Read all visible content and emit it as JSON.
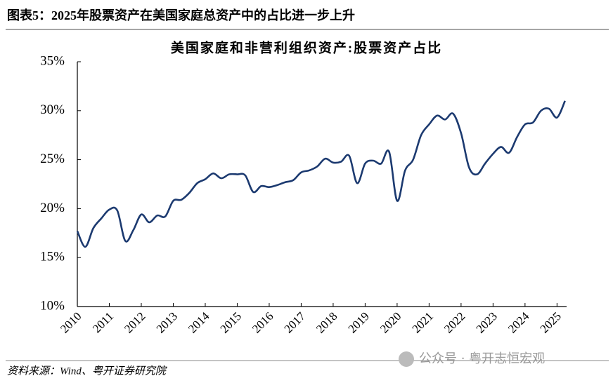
{
  "header": {
    "title": "图表5：2025年股票资产在美国家庭总资产中的占比进一步上升"
  },
  "chart_data": {
    "type": "line",
    "title": "美国家庭和非营利组织资产:股票资产占比",
    "x": [
      2010,
      2010.25,
      2010.5,
      2010.75,
      2011,
      2011.25,
      2011.5,
      2011.75,
      2012,
      2012.25,
      2012.5,
      2012.75,
      2013,
      2013.25,
      2013.5,
      2013.75,
      2014,
      2014.25,
      2014.5,
      2014.75,
      2015,
      2015.25,
      2015.5,
      2015.75,
      2016,
      2016.25,
      2016.5,
      2016.75,
      2017,
      2017.25,
      2017.5,
      2017.75,
      2018,
      2018.25,
      2018.5,
      2018.75,
      2019,
      2019.25,
      2019.5,
      2019.75,
      2020,
      2020.25,
      2020.5,
      2020.75,
      2021,
      2021.25,
      2021.5,
      2021.75,
      2022,
      2022.25,
      2022.5,
      2022.75,
      2023,
      2023.25,
      2023.5,
      2023.75,
      2024,
      2024.25,
      2024.5,
      2024.75,
      2025,
      2025.25
    ],
    "series": [
      {
        "name": "股票资产占比",
        "color": "#1c3a70",
        "values": [
          17.7,
          16.1,
          18.0,
          19.0,
          19.9,
          19.8,
          16.7,
          17.8,
          19.4,
          18.6,
          19.3,
          19.2,
          20.8,
          20.9,
          21.6,
          22.6,
          23.0,
          23.6,
          23.1,
          23.5,
          23.5,
          23.4,
          21.7,
          22.3,
          22.2,
          22.4,
          22.7,
          22.9,
          23.7,
          23.9,
          24.3,
          25.1,
          24.7,
          24.8,
          25.4,
          22.6,
          24.6,
          24.9,
          24.6,
          25.8,
          20.8,
          23.9,
          25.0,
          27.5,
          28.6,
          29.5,
          29.1,
          29.7,
          27.7,
          24.2,
          23.5,
          24.6,
          25.6,
          26.3,
          25.7,
          27.3,
          28.6,
          28.8,
          30.0,
          30.2,
          29.3,
          31.0
        ]
      }
    ],
    "xlim": [
      2010,
      2025.3
    ],
    "xticks": [
      2010,
      2011,
      2012,
      2013,
      2014,
      2015,
      2016,
      2017,
      2018,
      2019,
      2020,
      2021,
      2022,
      2023,
      2024,
      2025
    ],
    "ylim": [
      10,
      35
    ],
    "yticks": [
      {
        "value": 10,
        "label": "10%"
      },
      {
        "value": 15,
        "label": "15%"
      },
      {
        "value": 20,
        "label": "20%"
      },
      {
        "value": 25,
        "label": "25%"
      },
      {
        "value": 30,
        "label": "30%"
      },
      {
        "value": 35,
        "label": "35%"
      }
    ]
  },
  "source": "资料来源：Wind、粤开证券研究院",
  "watermark": "公众号 · 粤开志恒宏观"
}
